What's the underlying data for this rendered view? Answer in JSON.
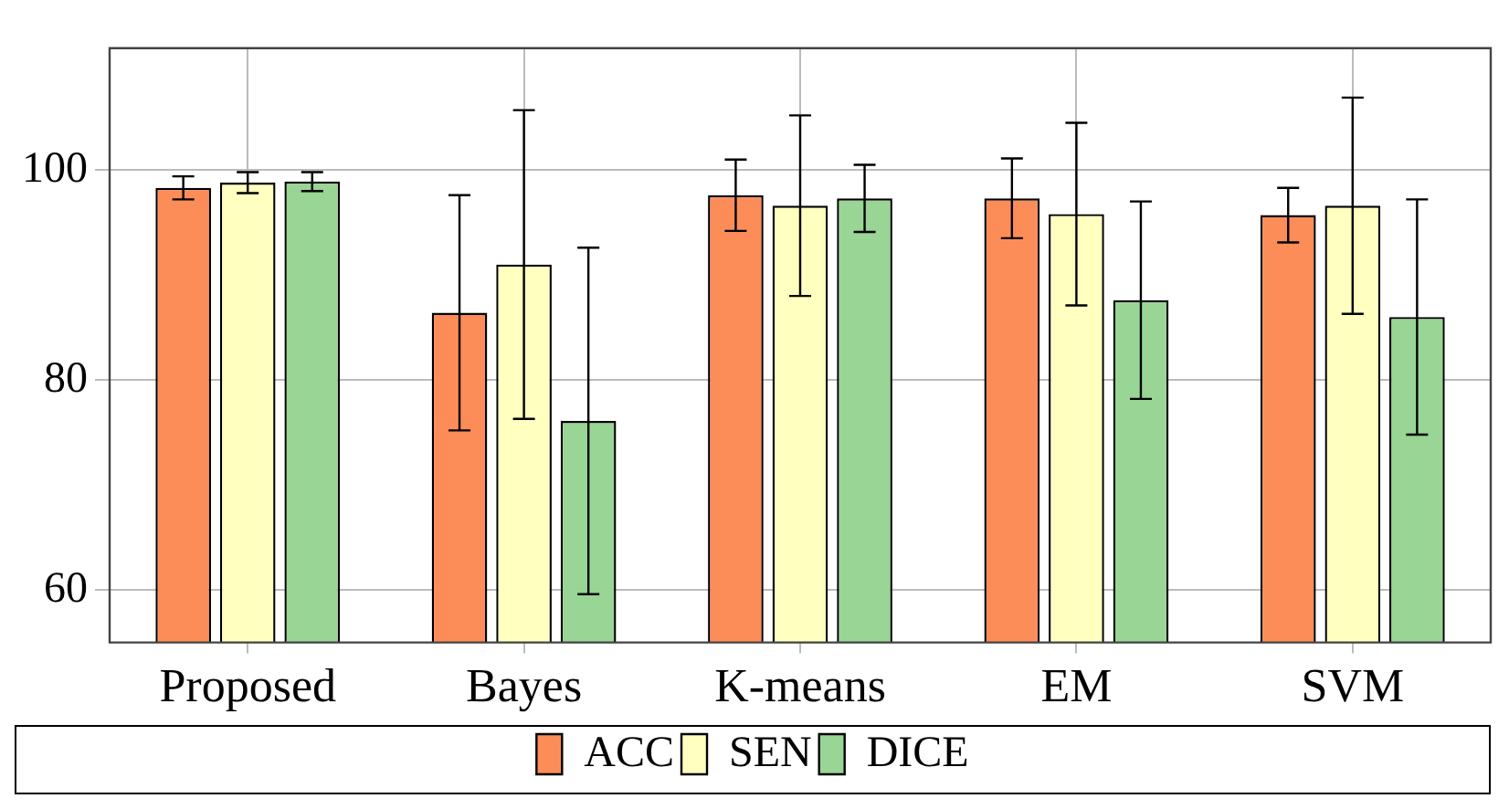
{
  "chart_data": {
    "type": "bar",
    "categories": [
      "Proposed",
      "Bayes",
      "K-means",
      "EM",
      "SVM"
    ],
    "series": [
      {
        "name": "ACC",
        "color": "#fc8d59",
        "values": [
          98.3,
          86.4,
          97.6,
          97.3,
          95.7
        ],
        "errors": [
          1.1,
          11.2,
          3.4,
          3.8,
          2.6
        ]
      },
      {
        "name": "SEN",
        "color": "#ffffbf",
        "values": [
          98.8,
          91.0,
          96.6,
          95.8,
          96.6
        ],
        "errors": [
          1.0,
          14.7,
          8.6,
          8.7,
          10.3
        ]
      },
      {
        "name": "DICE",
        "color": "#99d594",
        "values": [
          98.9,
          76.1,
          97.3,
          87.6,
          86.0
        ],
        "errors": [
          0.9,
          16.5,
          3.2,
          9.4,
          11.2
        ]
      }
    ],
    "ylim": [
      55,
      111.6
    ],
    "yticks": [
      60,
      80,
      100
    ],
    "grid": true,
    "legend": "bottom"
  }
}
